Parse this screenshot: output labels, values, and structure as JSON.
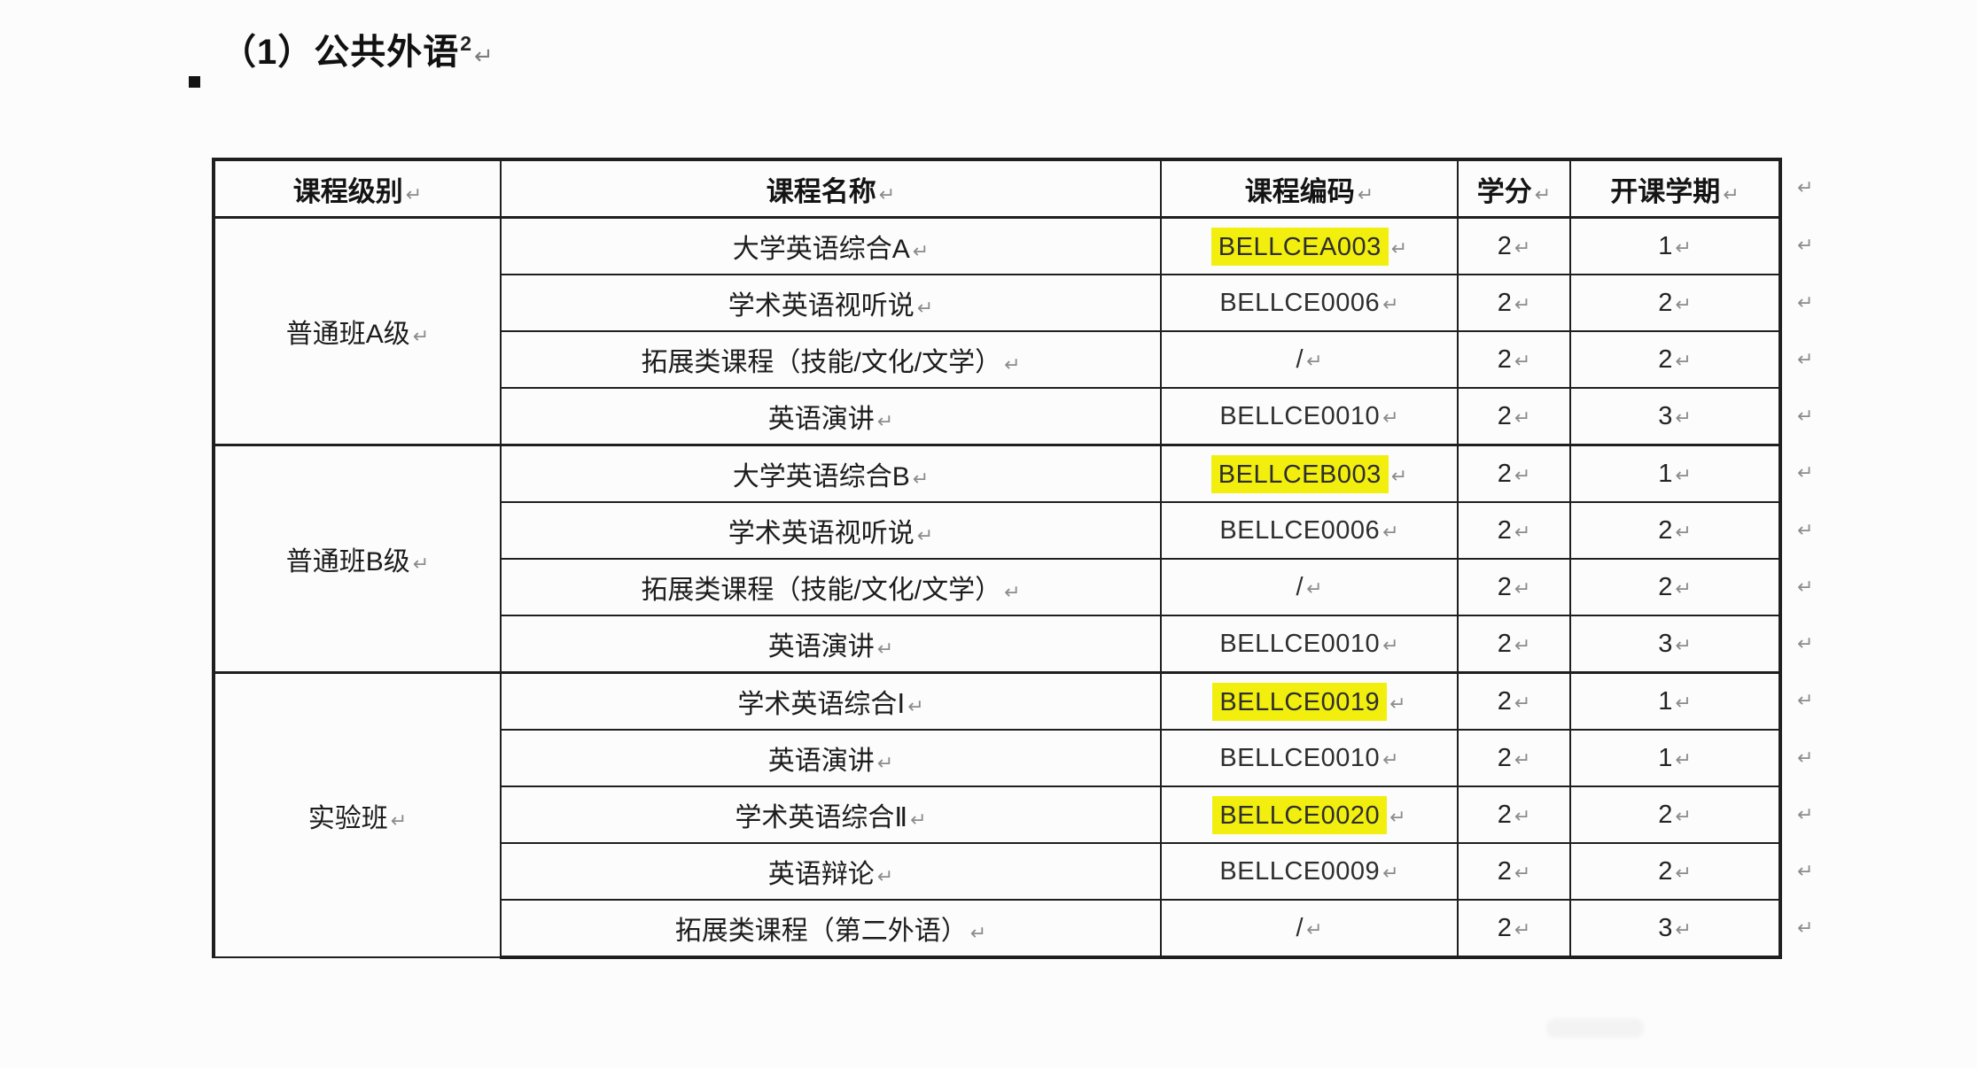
{
  "title": {
    "text": "（1）公共外语",
    "superscript": "2"
  },
  "marks": {
    "pilcrow": "↵"
  },
  "colors": {
    "highlight": "#f2ef0e",
    "border": "#1f1f1f"
  },
  "table": {
    "headers": [
      "课程级别",
      "课程名称",
      "课程编码",
      "学分",
      "开课学期"
    ],
    "groups": [
      {
        "level": "普通班A级",
        "courses": [
          {
            "name": "大学英语综合A",
            "code": "BELLCEA003",
            "highlight": true,
            "credits": "2",
            "semester": "1"
          },
          {
            "name": "学术英语视听说",
            "code": "BELLCE0006",
            "highlight": false,
            "credits": "2",
            "semester": "2"
          },
          {
            "name": "拓展类课程（技能/文化/文学）",
            "code": "/",
            "highlight": false,
            "credits": "2",
            "semester": "2"
          },
          {
            "name": "英语演讲",
            "code": "BELLCE0010",
            "highlight": false,
            "credits": "2",
            "semester": "3"
          }
        ]
      },
      {
        "level": "普通班B级",
        "courses": [
          {
            "name": "大学英语综合B",
            "code": "BELLCEB003",
            "highlight": true,
            "credits": "2",
            "semester": "1"
          },
          {
            "name": "学术英语视听说",
            "code": "BELLCE0006",
            "highlight": false,
            "credits": "2",
            "semester": "2"
          },
          {
            "name": "拓展类课程（技能/文化/文学）",
            "code": "/",
            "highlight": false,
            "credits": "2",
            "semester": "2"
          },
          {
            "name": "英语演讲",
            "code": "BELLCE0010",
            "highlight": false,
            "credits": "2",
            "semester": "3"
          }
        ]
      },
      {
        "level": "实验班",
        "courses": [
          {
            "name": "学术英语综合Ⅰ",
            "code": "BELLCE0019",
            "highlight": true,
            "credits": "2",
            "semester": "1"
          },
          {
            "name": "英语演讲",
            "code": "BELLCE0010",
            "highlight": false,
            "credits": "2",
            "semester": "1"
          },
          {
            "name": "学术英语综合Ⅱ",
            "code": "BELLCE0020",
            "highlight": true,
            "credits": "2",
            "semester": "2"
          },
          {
            "name": "英语辩论",
            "code": "BELLCE0009",
            "highlight": false,
            "credits": "2",
            "semester": "2"
          },
          {
            "name": "拓展类课程（第二外语）",
            "code": "/",
            "highlight": false,
            "credits": "2",
            "semester": "3"
          }
        ]
      }
    ]
  }
}
